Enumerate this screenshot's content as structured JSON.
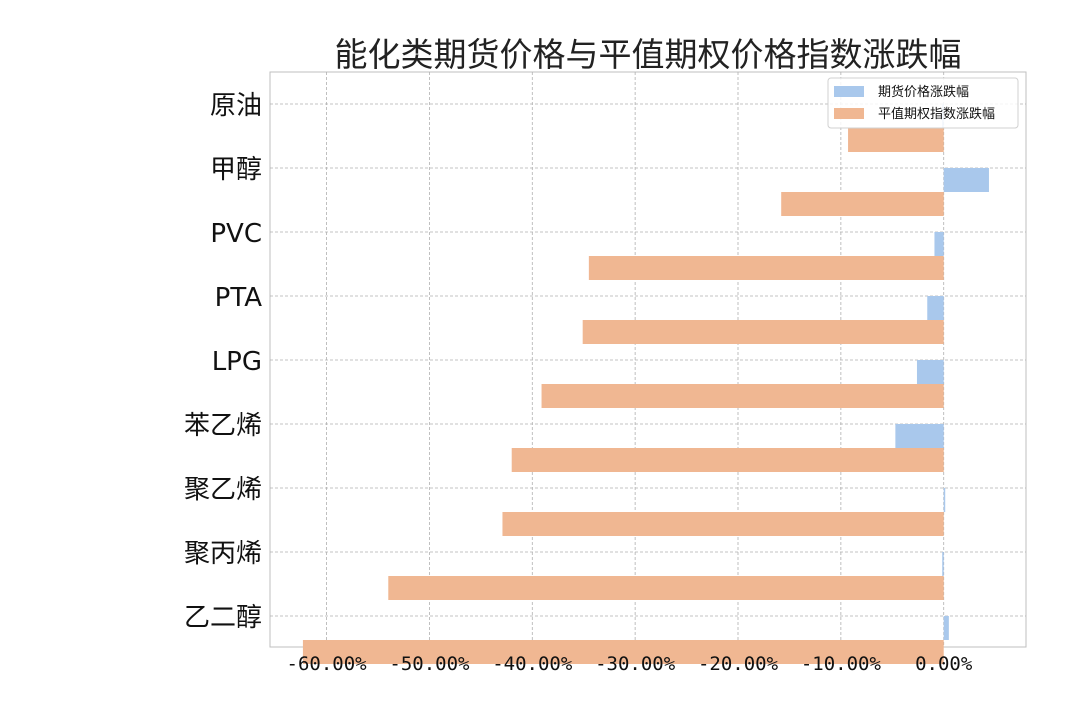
{
  "chart_data": {
    "type": "bar",
    "orientation": "horizontal",
    "title": "能化类期货价格与平值期权价格指数涨跌幅",
    "xlabel": "",
    "ylabel": "",
    "categories": [
      "原油",
      "甲醇",
      "PVC",
      "PTA",
      "LPG",
      "苯乙烯",
      "聚乙烯",
      "聚丙烯",
      "乙二醇"
    ],
    "series": [
      {
        "name": "期货价格涨跌幅",
        "color": "#a9c8ec",
        "values": [
          -0.1,
          4.4,
          -0.9,
          -1.6,
          -2.6,
          -4.7,
          0.0,
          -0.1,
          0.5
        ]
      },
      {
        "name": "平值期权指数涨跌幅",
        "color": "#f0b792",
        "values": [
          -9.3,
          -15.8,
          -34.5,
          -35.1,
          -39.1,
          -42.0,
          -42.9,
          -54.0,
          -62.3
        ]
      }
    ],
    "xlim": [
      -65.5,
      8.0
    ],
    "xticks": [
      -60,
      -50,
      -40,
      -30,
      -20,
      -10,
      0
    ],
    "xtick_labels": [
      "-60.00%",
      "-50.00%",
      "-40.00%",
      "-30.00%",
      "-20.00%",
      "-10.00%",
      "0.00%"
    ],
    "grid": true,
    "grid_style": "dashed",
    "legend_position": "top-right"
  }
}
